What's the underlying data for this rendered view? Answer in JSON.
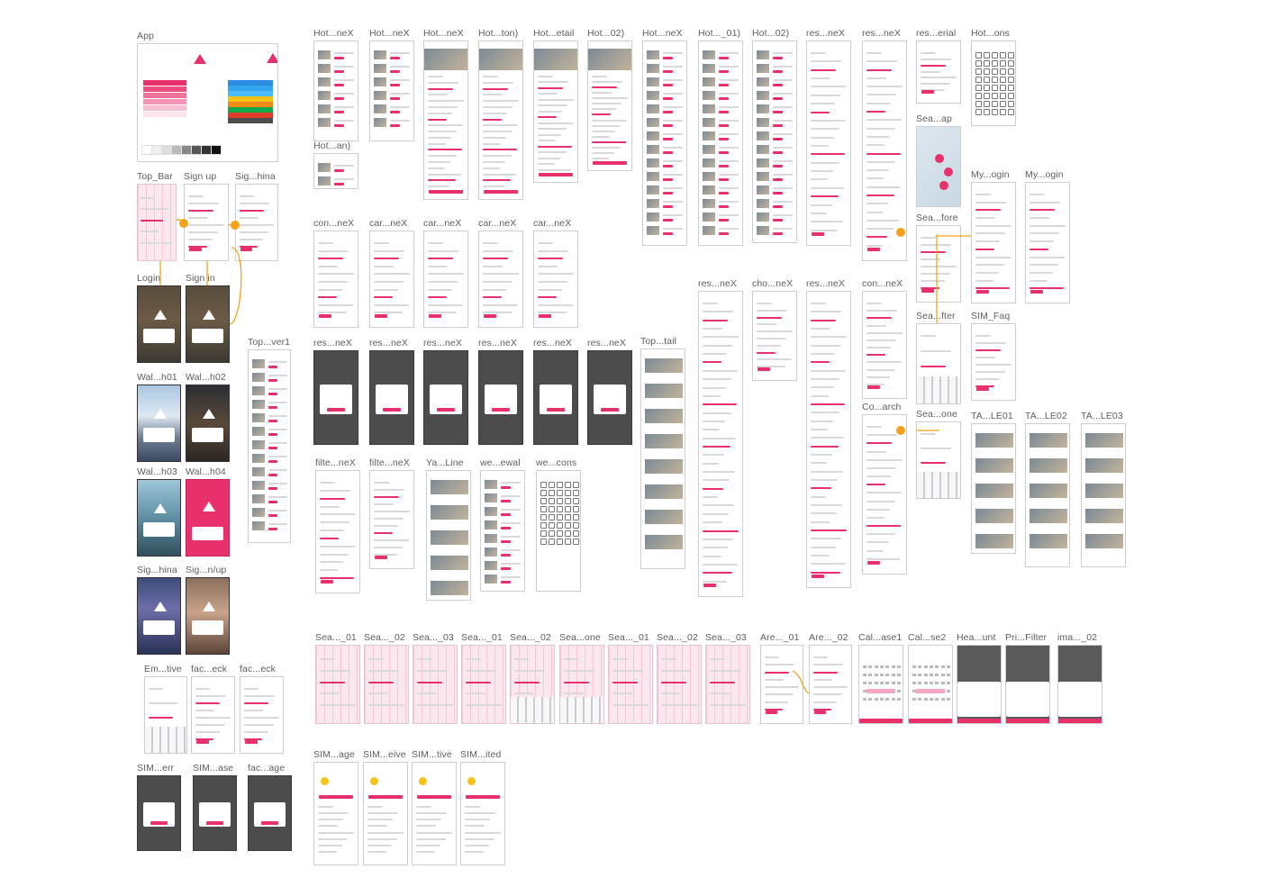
{
  "canvas": {
    "colors": {
      "brand": "#e8306a",
      "label": "#5f5f5f",
      "connector": "#f2a31b",
      "artboard_border": "#cfcfcf"
    },
    "artboards": [
      {
        "label": "App",
        "kind": "app"
      },
      {
        "label": "Top_Bar",
        "kind": "pink"
      },
      {
        "label": "Sign up",
        "kind": "screen"
      },
      {
        "label": "Sig...hina",
        "kind": "screen"
      },
      {
        "label": "Login",
        "kind": "photo"
      },
      {
        "label": "Sign in",
        "kind": "photo"
      },
      {
        "label": "Top...ver1",
        "kind": "list"
      },
      {
        "label": "Wal...h01",
        "kind": "mtn"
      },
      {
        "label": "Wal...h02",
        "kind": "temple"
      },
      {
        "label": "Wal...h03",
        "kind": "lake"
      },
      {
        "label": "Wal...h04",
        "kind": "brand"
      },
      {
        "label": "Sig...hina",
        "kind": "night"
      },
      {
        "label": "Sig...n/up",
        "kind": "japan"
      },
      {
        "label": "Em...tive",
        "kind": "keyboard"
      },
      {
        "label": "fac...eck",
        "kind": "screen"
      },
      {
        "label": "fac...eck",
        "kind": "screen"
      },
      {
        "label": "SIM...err",
        "kind": "dark"
      },
      {
        "label": "SIM...ase",
        "kind": "dark"
      },
      {
        "label": "fac...age",
        "kind": "dark"
      },
      {
        "label": "Hot...neX",
        "kind": "list"
      },
      {
        "label": "Hot...neX",
        "kind": "list"
      },
      {
        "label": "Hot...neX",
        "kind": "detail"
      },
      {
        "label": "Hot...ton)",
        "kind": "detail"
      },
      {
        "label": "Hot...etail",
        "kind": "detail"
      },
      {
        "label": "Hot...02)",
        "kind": "detail"
      },
      {
        "label": "Hot...neX",
        "kind": "long"
      },
      {
        "label": "Hot..._01)",
        "kind": "long"
      },
      {
        "label": "Hot...02)",
        "kind": "long"
      },
      {
        "label": "res...neX",
        "kind": "form"
      },
      {
        "label": "res...neX",
        "kind": "form"
      },
      {
        "label": "res...erial",
        "kind": "form"
      },
      {
        "label": "Hot...ons",
        "kind": "icons"
      },
      {
        "label": "Hot...an)",
        "kind": "list"
      },
      {
        "label": "Sea...ap",
        "kind": "map"
      },
      {
        "label": "My...ogin",
        "kind": "form"
      },
      {
        "label": "My...ogin",
        "kind": "form"
      },
      {
        "label": "Sea...fore",
        "kind": "form"
      },
      {
        "label": "con...neX",
        "kind": "form"
      },
      {
        "label": "car...neX",
        "kind": "form"
      },
      {
        "label": "car...neX",
        "kind": "form"
      },
      {
        "label": "car...neX",
        "kind": "form"
      },
      {
        "label": "car...neX",
        "kind": "form"
      },
      {
        "label": "res...neX",
        "kind": "form"
      },
      {
        "label": "cho...neX",
        "kind": "form"
      },
      {
        "label": "res...neX",
        "kind": "form"
      },
      {
        "label": "con...neX",
        "kind": "form"
      },
      {
        "label": "Sea...fter",
        "kind": "keyboard"
      },
      {
        "label": "SIM_Faq",
        "kind": "form"
      },
      {
        "label": "res...neX",
        "kind": "modal"
      },
      {
        "label": "res...neX",
        "kind": "modal"
      },
      {
        "label": "res...neX",
        "kind": "modal"
      },
      {
        "label": "res...neX",
        "kind": "modal"
      },
      {
        "label": "res...neX",
        "kind": "modal"
      },
      {
        "label": "res...neX",
        "kind": "modal"
      },
      {
        "label": "Top...tail",
        "kind": "article"
      },
      {
        "label": "Co...arch",
        "kind": "form"
      },
      {
        "label": "Sea...one",
        "kind": "keyboard"
      },
      {
        "label": "TA...LE01",
        "kind": "article"
      },
      {
        "label": "TA...LE02",
        "kind": "article"
      },
      {
        "label": "TA...LE03",
        "kind": "article"
      },
      {
        "label": "filte...neX",
        "kind": "form"
      },
      {
        "label": "filte...neX",
        "kind": "form"
      },
      {
        "label": "Ya...Line",
        "kind": "article"
      },
      {
        "label": "we...ewal",
        "kind": "list"
      },
      {
        "label": "we...cons",
        "kind": "icons"
      },
      {
        "label": "Sea..._01",
        "kind": "pink"
      },
      {
        "label": "Sea..._02",
        "kind": "pink"
      },
      {
        "label": "Sea..._03",
        "kind": "pink"
      },
      {
        "label": "Sea..._01",
        "kind": "pink"
      },
      {
        "label": "Sea..._02",
        "kind": "pinkkbd"
      },
      {
        "label": "Sea...one",
        "kind": "pinkkbd"
      },
      {
        "label": "Sea..._01",
        "kind": "pink"
      },
      {
        "label": "Sea..._02",
        "kind": "pink"
      },
      {
        "label": "Sea..._03",
        "kind": "pink"
      },
      {
        "label": "Are..._01",
        "kind": "form"
      },
      {
        "label": "Are..._02",
        "kind": "form"
      },
      {
        "label": "Cal...ase1",
        "kind": "calendar"
      },
      {
        "label": "Cal...se2",
        "kind": "calendar"
      },
      {
        "label": "Hea...unt",
        "kind": "dim"
      },
      {
        "label": "Pri...Filter",
        "kind": "dim"
      },
      {
        "label": "ima..._02",
        "kind": "dim"
      },
      {
        "label": "SIM...age",
        "kind": "sim"
      },
      {
        "label": "SIM...eive",
        "kind": "sim"
      },
      {
        "label": "SIM...tive",
        "kind": "sim"
      },
      {
        "label": "SIM...ited",
        "kind": "sim"
      }
    ]
  }
}
